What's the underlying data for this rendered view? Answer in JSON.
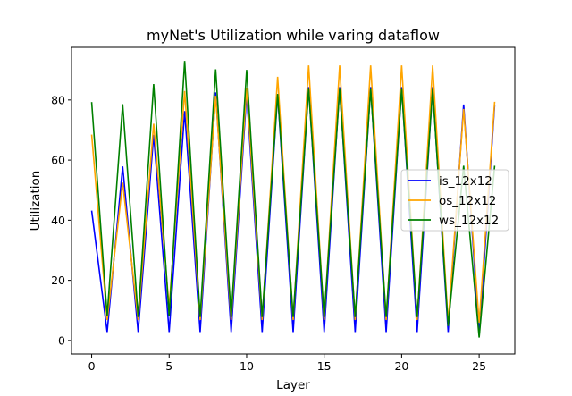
{
  "chart_data": {
    "type": "line",
    "title": "myNet's Utilization while varing dataflow",
    "xlabel": "Layer",
    "ylabel": "Utilization",
    "xlim": [
      -1.3,
      27.3
    ],
    "ylim": [
      -4.5,
      97.5
    ],
    "xticks": [
      0,
      5,
      10,
      15,
      20,
      25
    ],
    "yticks": [
      0,
      20,
      40,
      60,
      80
    ],
    "legend_position": "center-right",
    "grid": false,
    "x": [
      0,
      1,
      2,
      3,
      4,
      5,
      6,
      7,
      8,
      9,
      10,
      11,
      12,
      13,
      14,
      15,
      16,
      17,
      18,
      19,
      20,
      21,
      22,
      23,
      24,
      25,
      26
    ],
    "series": [
      {
        "name": "is_12x12",
        "color": "#0000ff",
        "values": [
          43.2,
          2.8,
          57.9,
          2.8,
          68.4,
          2.8,
          76.3,
          2.8,
          82.5,
          2.8,
          82.0,
          2.8,
          82.0,
          2.8,
          84.3,
          2.8,
          84.3,
          2.8,
          84.3,
          2.8,
          84.3,
          2.8,
          84.3,
          2.8,
          78.5,
          1.8,
          78.5
        ]
      },
      {
        "name": "os_12x12",
        "color": "#ffa500",
        "values": [
          68.5,
          6.8,
          52.5,
          6.8,
          72.1,
          11.0,
          83.0,
          6.8,
          81.4,
          6.8,
          84.1,
          6.8,
          87.7,
          6.8,
          91.5,
          6.8,
          91.5,
          6.8,
          91.5,
          6.8,
          91.5,
          6.8,
          91.5,
          5.9,
          77.0,
          5.9,
          79.4
        ]
      },
      {
        "name": "ws_12x12",
        "color": "#008000",
        "values": [
          79.3,
          8.2,
          78.6,
          7.8,
          85.3,
          8.2,
          93.0,
          7.8,
          90.2,
          7.8,
          90.0,
          7.8,
          82.0,
          7.8,
          83.6,
          7.8,
          83.6,
          7.8,
          83.6,
          7.8,
          83.6,
          7.8,
          83.6,
          4.8,
          58.1,
          1.0,
          58.1
        ]
      }
    ]
  }
}
